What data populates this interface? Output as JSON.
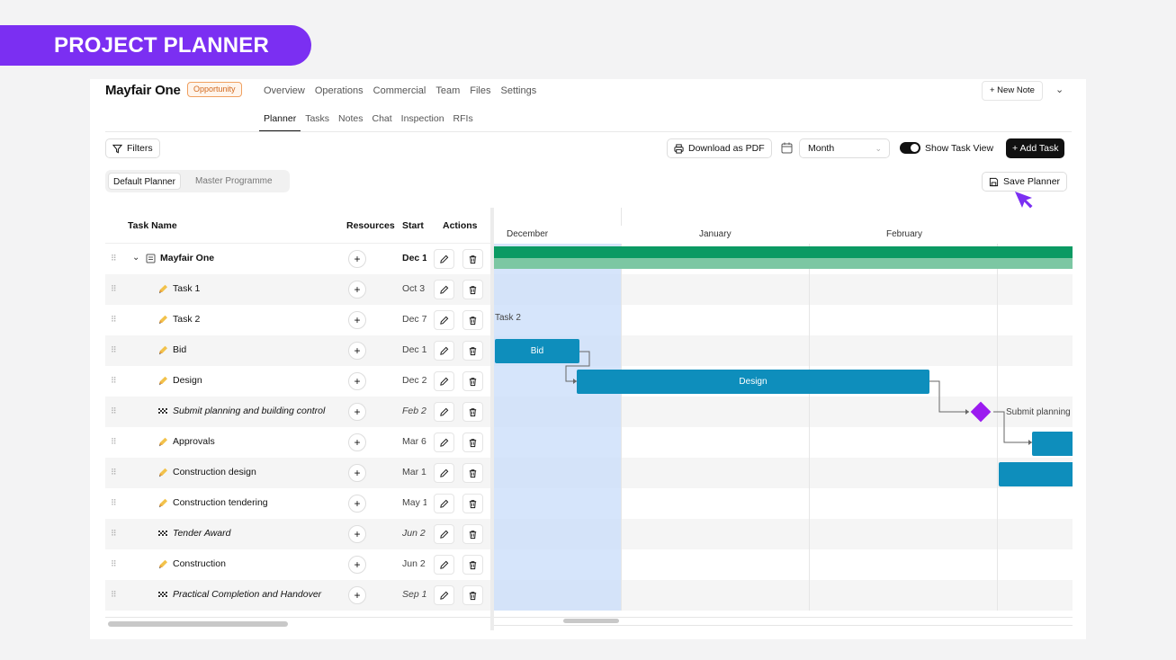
{
  "banner": "PROJECT PLANNER",
  "project": {
    "title": "Mayfair One",
    "badge": "Opportunity"
  },
  "topnav": [
    "Overview",
    "Operations",
    "Commercial",
    "Team",
    "Files",
    "Settings"
  ],
  "subnav": [
    "Planner",
    "Tasks",
    "Notes",
    "Chat",
    "Inspection",
    "RFIs"
  ],
  "new_note": "+ New Note",
  "toolbar": {
    "filters": "Filters",
    "download": "Download as PDF",
    "view_select": "Month",
    "show_task_view": "Show Task View",
    "add_task": "+ Add Task",
    "save_planner": "Save Planner"
  },
  "planner_tabs": [
    "Default Planner",
    "Master Programme"
  ],
  "table": {
    "headers": {
      "task_name": "Task Name",
      "resources": "Resources",
      "start": "Start",
      "actions": "Actions"
    },
    "rows": [
      {
        "name": "Mayfair One",
        "start": "Dec 1",
        "type": "group"
      },
      {
        "name": "Task 1",
        "start": "Oct 3",
        "type": "task"
      },
      {
        "name": "Task 2",
        "start": "Dec 7",
        "type": "task"
      },
      {
        "name": "Bid",
        "start": "Dec 1",
        "type": "task"
      },
      {
        "name": "Design",
        "start": "Dec 2",
        "type": "task"
      },
      {
        "name": "Submit planning and building control",
        "start": "Feb 2",
        "type": "milestone"
      },
      {
        "name": "Approvals",
        "start": "Mar 6",
        "type": "task"
      },
      {
        "name": "Construction design",
        "start": "Mar 1",
        "type": "task"
      },
      {
        "name": "Construction tendering",
        "start": "May 1",
        "type": "task"
      },
      {
        "name": "Tender Award",
        "start": "Jun 2",
        "type": "milestone"
      },
      {
        "name": "Construction",
        "start": "Jun 2",
        "type": "task"
      },
      {
        "name": "Practical Completion and Handover",
        "start": "Sep 1",
        "type": "milestone"
      }
    ]
  },
  "gantt": {
    "months": [
      "December",
      "January",
      "February"
    ],
    "labels": {
      "task2": "Task 2",
      "bid": "Bid",
      "design": "Design",
      "submit": "Submit planning"
    },
    "colors": {
      "summary_dark": "#0b9a63",
      "summary_light": "#7cc7a3",
      "bar": "#0e8ebc",
      "milestone": "#9b1bf0",
      "accent": "#7b2ff2"
    }
  }
}
